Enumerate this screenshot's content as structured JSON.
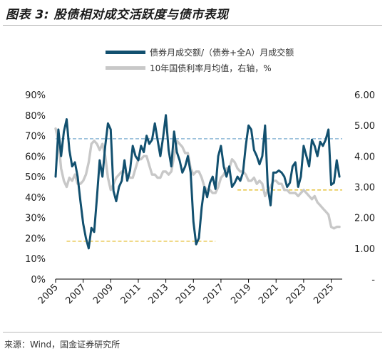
{
  "header": {
    "title": "图表 3: 股债相对成交活跃度与债市表现"
  },
  "source": "来源：Wind，国金证券研究所",
  "legend": [
    {
      "label": "债券月成交额/（债券+全A）月成交额",
      "color": "#12506f"
    },
    {
      "label": "10年国债利率月均值，右轴，%",
      "color": "#c8c8c8"
    }
  ],
  "chart_data": {
    "type": "line",
    "x_ticks": [
      "2005",
      "2007",
      "2009",
      "2011",
      "2013",
      "2015",
      "2017",
      "2019",
      "2021",
      "2023",
      "2025"
    ],
    "xlim": [
      2005,
      2025.8
    ],
    "y_left": {
      "ticks": [
        "0%",
        "10%",
        "20%",
        "30%",
        "40%",
        "50%",
        "60%",
        "70%",
        "80%",
        "90%"
      ],
      "lim": [
        0,
        90
      ]
    },
    "y_right": {
      "ticks": [
        "-",
        "1.00",
        "2.00",
        "3.00",
        "4.00",
        "5.00",
        "6.00"
      ],
      "lim": [
        0,
        6
      ]
    },
    "reference_lines": [
      {
        "axis": "left",
        "value": 68.5,
        "x": [
          2005,
          2025.8
        ],
        "color": "#8fb9d8",
        "style": "dashed"
      },
      {
        "axis": "left",
        "value": 18.5,
        "x": [
          2005.8,
          2016.6
        ],
        "color": "#e8c64a",
        "style": "dashed"
      },
      {
        "axis": "left",
        "value": 43.5,
        "x": [
          2018.2,
          2025.8
        ],
        "color": "#e8c64a",
        "style": "dashed"
      }
    ],
    "series": [
      {
        "name": "债券月成交额/（债券+全A）月成交额",
        "axis": "left",
        "color": "#12506f",
        "x": [
          2005.0,
          2005.2,
          2005.4,
          2005.6,
          2005.8,
          2006.0,
          2006.2,
          2006.4,
          2006.6,
          2006.8,
          2007.0,
          2007.2,
          2007.4,
          2007.6,
          2007.8,
          2008.0,
          2008.2,
          2008.4,
          2008.6,
          2008.8,
          2009.0,
          2009.2,
          2009.4,
          2009.6,
          2009.8,
          2010.0,
          2010.2,
          2010.4,
          2010.6,
          2010.8,
          2011.0,
          2011.2,
          2011.4,
          2011.6,
          2011.8,
          2012.0,
          2012.2,
          2012.4,
          2012.6,
          2012.8,
          2013.0,
          2013.2,
          2013.4,
          2013.6,
          2013.8,
          2014.0,
          2014.2,
          2014.4,
          2014.6,
          2014.8,
          2015.0,
          2015.2,
          2015.4,
          2015.6,
          2015.8,
          2016.0,
          2016.2,
          2016.4,
          2016.6,
          2016.8,
          2017.0,
          2017.2,
          2017.4,
          2017.6,
          2017.8,
          2018.0,
          2018.2,
          2018.4,
          2018.6,
          2018.8,
          2019.0,
          2019.2,
          2019.4,
          2019.6,
          2019.8,
          2020.0,
          2020.2,
          2020.4,
          2020.6,
          2020.8,
          2021.0,
          2021.2,
          2021.4,
          2021.6,
          2021.8,
          2022.0,
          2022.2,
          2022.4,
          2022.6,
          2022.8,
          2023.0,
          2023.2,
          2023.4,
          2023.6,
          2023.8,
          2024.0,
          2024.2,
          2024.4,
          2024.6,
          2024.8,
          2025.0,
          2025.2,
          2025.4,
          2025.6
        ],
        "y": [
          50,
          73,
          60,
          72,
          78,
          63,
          55,
          57,
          50,
          38,
          27,
          20,
          15,
          25,
          23,
          40,
          58,
          50,
          65,
          76,
          73,
          43,
          38,
          45,
          48,
          58,
          48,
          53,
          65,
          60,
          58,
          65,
          62,
          70,
          66,
          68,
          76,
          68,
          60,
          69,
          80,
          63,
          55,
          72,
          62,
          58,
          52,
          55,
          60,
          52,
          28,
          17,
          20,
          35,
          45,
          40,
          47,
          50,
          44,
          60,
          65,
          55,
          50,
          55,
          45,
          47,
          50,
          48,
          52,
          65,
          75,
          73,
          63,
          60,
          56,
          60,
          75,
          45,
          36,
          52,
          52,
          53,
          52,
          50,
          45,
          47,
          55,
          57,
          45,
          50,
          65,
          60,
          55,
          68,
          65,
          60,
          67,
          65,
          68,
          73,
          46,
          47,
          58,
          50
        ]
      },
      {
        "name": "10年国债利率月均值，右轴，%",
        "axis": "right",
        "color": "#c8c8c8",
        "x": [
          2005.0,
          2005.2,
          2005.4,
          2005.6,
          2005.8,
          2006.0,
          2006.2,
          2006.4,
          2006.6,
          2006.8,
          2007.0,
          2007.2,
          2007.4,
          2007.6,
          2007.8,
          2008.0,
          2008.2,
          2008.4,
          2008.6,
          2008.8,
          2009.0,
          2009.2,
          2009.4,
          2009.6,
          2009.8,
          2010.0,
          2010.2,
          2010.4,
          2010.6,
          2010.8,
          2011.0,
          2011.2,
          2011.4,
          2011.6,
          2011.8,
          2012.0,
          2012.2,
          2012.4,
          2012.6,
          2012.8,
          2013.0,
          2013.2,
          2013.4,
          2013.6,
          2013.8,
          2014.0,
          2014.2,
          2014.4,
          2014.6,
          2014.8,
          2015.0,
          2015.2,
          2015.4,
          2015.6,
          2015.8,
          2016.0,
          2016.2,
          2016.4,
          2016.6,
          2016.8,
          2017.0,
          2017.2,
          2017.4,
          2017.6,
          2017.8,
          2018.0,
          2018.2,
          2018.4,
          2018.6,
          2018.8,
          2019.0,
          2019.2,
          2019.4,
          2019.6,
          2019.8,
          2020.0,
          2020.2,
          2020.4,
          2020.6,
          2020.8,
          2021.0,
          2021.2,
          2021.4,
          2021.6,
          2021.8,
          2022.0,
          2022.2,
          2022.4,
          2022.6,
          2022.8,
          2023.0,
          2023.2,
          2023.4,
          2023.6,
          2023.8,
          2024.0,
          2024.2,
          2024.4,
          2024.6,
          2024.8,
          2025.0,
          2025.2,
          2025.4,
          2025.6
        ],
        "y": [
          4.9,
          4.5,
          3.6,
          3.2,
          3.0,
          3.3,
          3.2,
          3.4,
          3.1,
          3.1,
          3.2,
          3.4,
          3.8,
          4.4,
          4.5,
          4.4,
          4.2,
          4.4,
          4.0,
          3.3,
          2.9,
          3.1,
          3.3,
          3.4,
          3.5,
          3.5,
          3.4,
          3.3,
          3.3,
          3.6,
          3.9,
          3.9,
          4.0,
          4.0,
          3.7,
          3.4,
          3.4,
          3.3,
          3.3,
          3.5,
          3.5,
          3.4,
          3.5,
          4.0,
          4.5,
          4.4,
          4.3,
          4.1,
          4.1,
          3.6,
          3.4,
          3.5,
          3.5,
          3.3,
          3.0,
          2.9,
          2.9,
          2.8,
          2.8,
          3.0,
          3.3,
          3.4,
          3.6,
          3.6,
          3.9,
          3.8,
          3.6,
          3.5,
          3.5,
          3.4,
          3.2,
          3.2,
          3.3,
          3.1,
          3.2,
          3.1,
          2.7,
          2.9,
          3.0,
          3.2,
          3.2,
          3.1,
          3.1,
          2.9,
          2.9,
          2.8,
          2.8,
          2.8,
          2.7,
          2.8,
          2.9,
          2.8,
          2.7,
          2.6,
          2.7,
          2.5,
          2.4,
          2.3,
          2.2,
          2.1,
          1.7,
          1.65,
          1.7,
          1.7
        ]
      }
    ]
  }
}
